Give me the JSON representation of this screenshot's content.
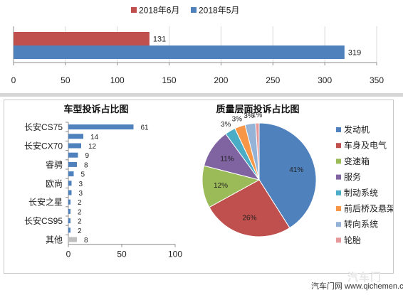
{
  "chart_data": [
    {
      "type": "bar",
      "orientation": "horizontal",
      "title": "",
      "series": [
        {
          "name": "2018年6月",
          "values": [
            131
          ],
          "color": "#c0504d"
        },
        {
          "name": "2018年5月",
          "values": [
            319
          ],
          "color": "#4f81bd"
        }
      ],
      "xlim": [
        0,
        350
      ],
      "xticks": [
        0,
        50,
        100,
        150,
        200,
        250,
        300,
        350
      ],
      "grid": true,
      "legend": "top"
    },
    {
      "type": "bar",
      "orientation": "horizontal",
      "title": "车型投诉占比图",
      "categories": [
        "长安CS75",
        "",
        "长安CX70",
        "",
        "睿骋",
        "",
        "欧尚",
        "",
        "长安之星",
        "",
        "长安CS95",
        "",
        "其他"
      ],
      "values": [
        61,
        14,
        12,
        9,
        8,
        5,
        3,
        3,
        2,
        2,
        2,
        2,
        8
      ],
      "colors": [
        "#4f81bd",
        "#4f81bd",
        "#4f81bd",
        "#4f81bd",
        "#4f81bd",
        "#4f81bd",
        "#4f81bd",
        "#4f81bd",
        "#4f81bd",
        "#4f81bd",
        "#4f81bd",
        "#4f81bd",
        "#bfbfbf"
      ],
      "xlim": [
        0,
        100
      ],
      "xticks": [
        0,
        50,
        100
      ],
      "grid": false
    },
    {
      "type": "pie",
      "title": "质量层面投诉占比图",
      "labels": [
        "发动机",
        "车身及电气",
        "变速箱",
        "服务",
        "制动系统",
        "前后桥及悬架",
        "转向系统",
        "轮胎"
      ],
      "values": [
        41,
        26,
        12,
        11,
        3,
        3,
        3,
        1
      ],
      "value_labels": [
        "41%",
        "26%",
        "12%",
        "11%",
        "3%",
        "3%",
        "3%",
        "1%"
      ],
      "colors": [
        "#4f81bd",
        "#c0504d",
        "#9bbb59",
        "#8064a2",
        "#4bacc6",
        "#f79646",
        "#95b3d7",
        "#e6999a"
      ],
      "legend": "right"
    }
  ],
  "footer": {
    "source": "汽车门网 www.qichemen.com",
    "watermark": "汽车门"
  }
}
